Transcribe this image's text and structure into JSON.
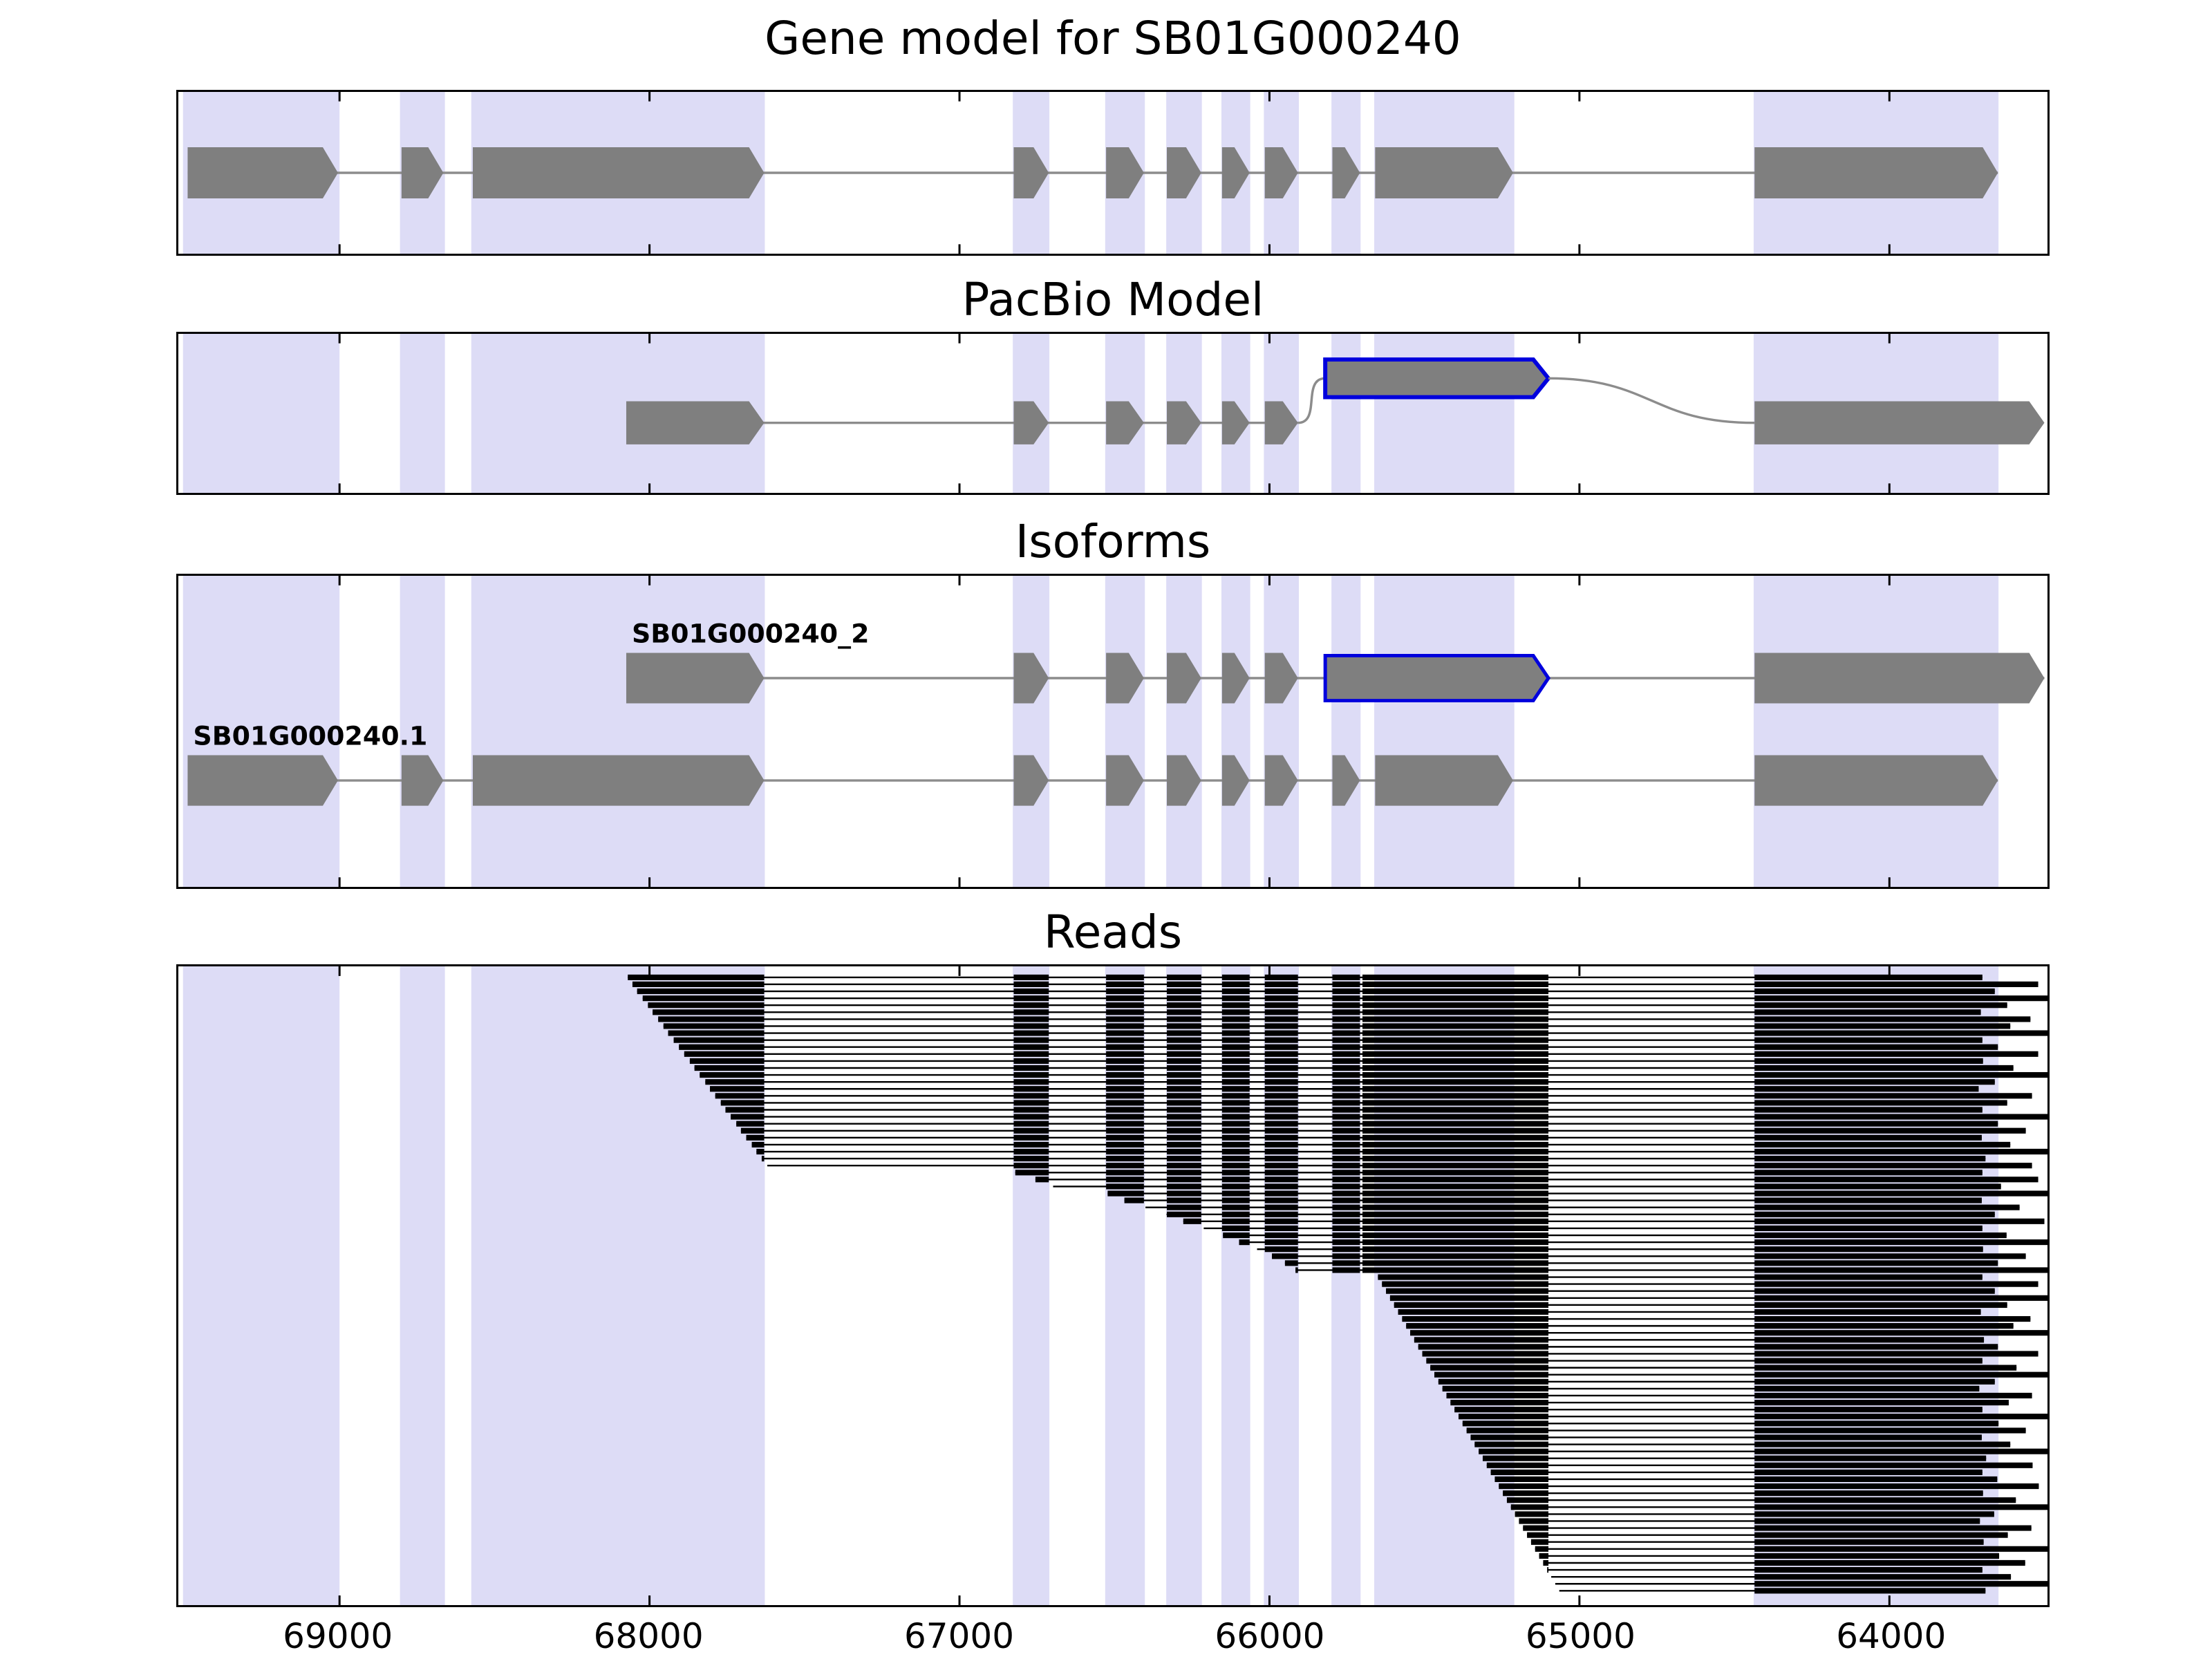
{
  "figure": {
    "background": "#ffffff",
    "panels": [
      {
        "id": "gene_model",
        "title": "Gene model for SB01G000240"
      },
      {
        "id": "pacbio",
        "title": "PacBio Model"
      },
      {
        "id": "isoforms",
        "title": "Isoforms"
      },
      {
        "id": "reads",
        "title": "Reads"
      }
    ]
  },
  "chart_data": {
    "type": "genome-track-plot",
    "title": "Gene model for SB01G000240",
    "x_axis": {
      "domain": [
        69520,
        63490
      ],
      "reversed": true,
      "ticks": [
        69000,
        68000,
        67000,
        66000,
        65000,
        64000
      ],
      "tick_labels": [
        "69000",
        "68000",
        "67000",
        "66000",
        "65000",
        "64000"
      ]
    },
    "colors": {
      "exon": "#7f7f7f",
      "line": "#8c8c8c",
      "band": "#dddcf6",
      "highlight": "#0000dd",
      "read": "#000000",
      "axis": "#000000"
    },
    "bands": [
      [
        69505,
        69000
      ],
      [
        68805,
        68660
      ],
      [
        68575,
        67628
      ],
      [
        66828,
        66710
      ],
      [
        66530,
        66402
      ],
      [
        66333,
        66218
      ],
      [
        66155,
        66062
      ],
      [
        66018,
        65905
      ],
      [
        65800,
        65706
      ],
      [
        65662,
        65210
      ],
      [
        64438,
        63648
      ]
    ],
    "tracks": {
      "gene_model": {
        "exons": [
          [
            69490,
            69005
          ],
          [
            68800,
            68665
          ],
          [
            68570,
            67630
          ],
          [
            66825,
            66712
          ],
          [
            66527,
            66405
          ],
          [
            66331,
            66220
          ],
          [
            66153,
            66064
          ],
          [
            66015,
            65908
          ],
          [
            65797,
            65708
          ],
          [
            65659,
            65214
          ],
          [
            64435,
            63650
          ]
        ]
      },
      "pacbio": {
        "exons": [
          [
            68075,
            67630
          ],
          [
            66825,
            66712
          ],
          [
            66527,
            66405
          ],
          [
            66331,
            66220
          ],
          [
            66153,
            66064
          ],
          [
            66015,
            65908
          ]
        ],
        "highlight_exon": [
          65820,
          65100
        ],
        "final_exon": [
          64435,
          63500
        ]
      },
      "isoforms": [
        {
          "name": "SB01G000240_2",
          "exons": [
            [
              68075,
              67630
            ],
            [
              66825,
              66712
            ],
            [
              66527,
              66405
            ],
            [
              66331,
              66220
            ],
            [
              66153,
              66064
            ],
            [
              66015,
              65908
            ]
          ],
          "highlight_exon": [
            65820,
            65100
          ],
          "final_exon": [
            64435,
            63500
          ]
        },
        {
          "name": "SB01G000240.1",
          "exons": [
            [
              69490,
              69005
            ],
            [
              68800,
              68665
            ],
            [
              68570,
              67630
            ],
            [
              66825,
              66712
            ],
            [
              66527,
              66405
            ],
            [
              66331,
              66220
            ],
            [
              66153,
              66064
            ],
            [
              66015,
              65908
            ],
            [
              65797,
              65708
            ],
            [
              65659,
              65214
            ],
            [
              64435,
              63650
            ]
          ]
        }
      ],
      "reads": {
        "exon_regions": [
          [
            68570,
            67630
          ],
          [
            66825,
            66712
          ],
          [
            66527,
            66405
          ],
          [
            66331,
            66220
          ],
          [
            66153,
            66064
          ],
          [
            66015,
            65908
          ],
          [
            65797,
            65708
          ],
          [
            65700,
            65100
          ],
          [
            64435,
            63460
          ]
        ],
        "reads": [
          [
            68070,
            63700
          ],
          [
            68055,
            63520
          ],
          [
            68040,
            63660
          ],
          [
            68022,
            63480
          ],
          [
            68005,
            63620
          ],
          [
            67990,
            63705
          ],
          [
            67972,
            63545
          ],
          [
            67955,
            63610
          ],
          [
            67940,
            63480
          ],
          [
            67922,
            63700
          ],
          [
            67905,
            63650
          ],
          [
            67888,
            63520
          ],
          [
            67870,
            63698
          ],
          [
            67855,
            63600
          ],
          [
            67838,
            63470
          ],
          [
            67820,
            63660
          ],
          [
            67805,
            63712
          ],
          [
            67788,
            63540
          ],
          [
            67770,
            63620
          ],
          [
            67755,
            63700
          ],
          [
            67738,
            63480
          ],
          [
            67720,
            63650
          ],
          [
            67705,
            63560
          ],
          [
            67688,
            63702
          ],
          [
            67670,
            63610
          ],
          [
            67655,
            63470
          ],
          [
            67638,
            63690
          ],
          [
            67620,
            63540
          ],
          [
            66820,
            63700
          ],
          [
            66755,
            63520
          ],
          [
            66698,
            63640
          ],
          [
            66522,
            63480
          ],
          [
            66468,
            63702
          ],
          [
            66400,
            63580
          ],
          [
            66332,
            63660
          ],
          [
            66278,
            63500
          ],
          [
            66212,
            63700
          ],
          [
            66150,
            63622
          ],
          [
            66098,
            63480
          ],
          [
            66040,
            63698
          ],
          [
            65992,
            63560
          ],
          [
            65950,
            63650
          ],
          [
            65916,
            63490
          ],
          [
            65650,
            63700
          ],
          [
            65637,
            63520
          ],
          [
            65624,
            63660
          ],
          [
            65611,
            63470
          ],
          [
            65598,
            63620
          ],
          [
            65585,
            63705
          ],
          [
            65572,
            63545
          ],
          [
            65559,
            63600
          ],
          [
            65546,
            63480
          ],
          [
            65533,
            63695
          ],
          [
            65520,
            63650
          ],
          [
            65507,
            63520
          ],
          [
            65494,
            63700
          ],
          [
            65481,
            63590
          ],
          [
            65468,
            63470
          ],
          [
            65455,
            63660
          ],
          [
            65442,
            63710
          ],
          [
            65429,
            63540
          ],
          [
            65416,
            63615
          ],
          [
            65403,
            63700
          ],
          [
            65390,
            63480
          ],
          [
            65377,
            63648
          ],
          [
            65364,
            63560
          ],
          [
            65351,
            63702
          ],
          [
            65338,
            63610
          ],
          [
            65325,
            63468
          ],
          [
            65312,
            63688
          ],
          [
            65299,
            63538
          ],
          [
            65286,
            63700
          ],
          [
            65273,
            63652
          ],
          [
            65260,
            63518
          ],
          [
            65247,
            63698
          ],
          [
            65234,
            63592
          ],
          [
            65221,
            63472
          ],
          [
            65208,
            63662
          ],
          [
            65195,
            63708
          ],
          [
            65182,
            63542
          ],
          [
            65169,
            63618
          ],
          [
            65156,
            63696
          ],
          [
            65143,
            63482
          ],
          [
            65130,
            63646
          ],
          [
            65117,
            63562
          ],
          [
            65104,
            63700
          ],
          [
            65091,
            63608
          ],
          [
            65078,
            63466
          ],
          [
            65065,
            63690
          ]
        ]
      }
    }
  }
}
